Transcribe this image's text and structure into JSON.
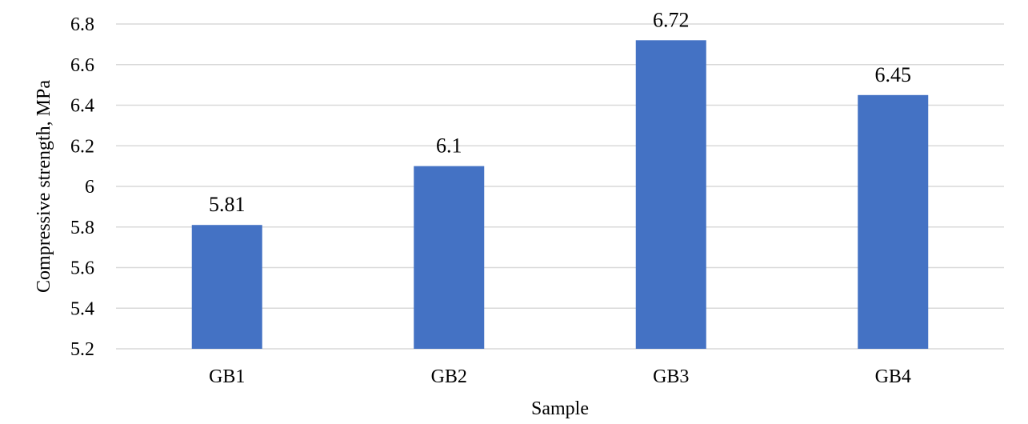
{
  "chart_data": {
    "type": "bar",
    "title": "",
    "xlabel": "Sample",
    "ylabel": "Compressive  strength,  MPa",
    "categories": [
      "GB1",
      "GB2",
      "GB3",
      "GB4"
    ],
    "values": [
      5.81,
      6.1,
      6.72,
      6.45
    ],
    "data_labels": [
      "5.81",
      "6.1",
      "6.72",
      "6.45"
    ],
    "ylim": [
      5.2,
      6.8
    ],
    "yticks": [
      5.2,
      5.4,
      5.6,
      5.8,
      6,
      6.2,
      6.4,
      6.6,
      6.8
    ],
    "ytick_labels": [
      "5.2",
      "5.4",
      "5.6",
      "5.8",
      "6",
      "6.2",
      "6.4",
      "6.6",
      "6.8"
    ],
    "grid": true,
    "legend": "none",
    "bar_color": "#4472c4"
  }
}
